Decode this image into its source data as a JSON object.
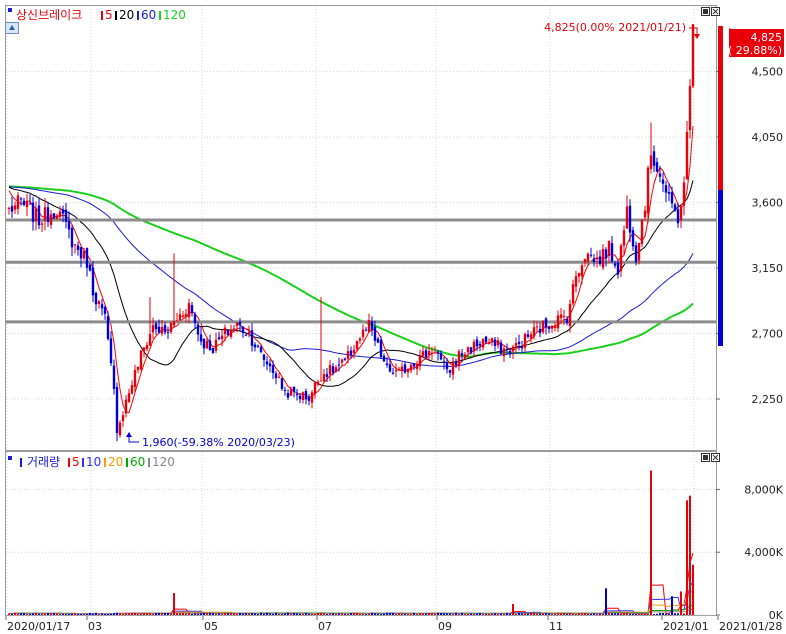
{
  "colors": {
    "up": "#e8000b",
    "down": "#0000dd",
    "ma5": "#ff0000",
    "ma20": "#000000",
    "ma60": "#1b1bd6",
    "ma120": "#19d119",
    "grid": "#d8d8d8",
    "hline": "#8c8c8c",
    "vol10": "#3030ff",
    "vol20": "#ff9900",
    "vol60": "#00aa00",
    "vol120": "#888888"
  },
  "price_legend": {
    "title": "상신브레이크",
    "items": [
      {
        "label": "5",
        "color": "#ff0000"
      },
      {
        "label": "20",
        "color": "#000000"
      },
      {
        "label": "60",
        "color": "#1b1bd6"
      },
      {
        "label": "120",
        "color": "#19d119"
      }
    ]
  },
  "volume_legend": {
    "title": "거래량",
    "items": [
      {
        "label": "5",
        "color": "#ff0000"
      },
      {
        "label": "10",
        "color": "#3030ff"
      },
      {
        "label": "20",
        "color": "#ff9900"
      },
      {
        "label": "60",
        "color": "#00aa00"
      },
      {
        "label": "120",
        "color": "#888888"
      }
    ]
  },
  "annotations": {
    "high": "4,825(0.00% 2021/01/21)",
    "low": "1,960(-59.38% 2020/03/23)",
    "current_price": "4,825",
    "current_change": "( 29.88%)"
  },
  "chart_data": [
    {
      "type": "candlestick",
      "title": "상신브레이크",
      "x_tick_labels": [
        "2020/01/17",
        "03",
        "05",
        "07",
        "09",
        "11",
        "2021/01",
        "2021/01/28"
      ],
      "y_ticks": [
        "4,500",
        "4,050",
        "3,600",
        "3,150",
        "2,700",
        "2,250"
      ],
      "ylim": [
        1900,
        4950
      ],
      "horizontal_lines": [
        3480,
        3190,
        2780
      ],
      "series_names": [
        "5",
        "20",
        "60",
        "120"
      ],
      "high": 4825,
      "low": 1960,
      "last": 4825,
      "anchors": [
        [
          0,
          3550
        ],
        [
          4,
          3600
        ],
        [
          10,
          3480
        ],
        [
          16,
          3560
        ],
        [
          22,
          3300
        ],
        [
          26,
          3200
        ],
        [
          28,
          3000
        ],
        [
          32,
          2800
        ],
        [
          35,
          2300
        ],
        [
          36,
          2050
        ],
        [
          37,
          2100
        ],
        [
          40,
          2300
        ],
        [
          44,
          2550
        ],
        [
          48,
          2750
        ],
        [
          52,
          2700
        ],
        [
          56,
          2800
        ],
        [
          60,
          2900
        ],
        [
          64,
          2650
        ],
        [
          68,
          2600
        ],
        [
          72,
          2700
        ],
        [
          76,
          2760
        ],
        [
          80,
          2700
        ],
        [
          84,
          2550
        ],
        [
          88,
          2450
        ],
        [
          92,
          2300
        ],
        [
          96,
          2280
        ],
        [
          100,
          2260
        ],
        [
          104,
          2420
        ],
        [
          108,
          2450
        ],
        [
          112,
          2500
        ],
        [
          116,
          2650
        ],
        [
          120,
          2750
        ],
        [
          122,
          2650
        ],
        [
          126,
          2450
        ],
        [
          130,
          2420
        ],
        [
          134,
          2500
        ],
        [
          138,
          2550
        ],
        [
          142,
          2600
        ],
        [
          146,
          2420
        ],
        [
          150,
          2550
        ],
        [
          154,
          2600
        ],
        [
          158,
          2650
        ],
        [
          162,
          2620
        ],
        [
          166,
          2580
        ],
        [
          170,
          2620
        ],
        [
          174,
          2700
        ],
        [
          178,
          2750
        ],
        [
          182,
          2790
        ],
        [
          186,
          2820
        ],
        [
          189,
          3100
        ],
        [
          192,
          3250
        ],
        [
          196,
          3200
        ],
        [
          200,
          3280
        ],
        [
          203,
          3150
        ],
        [
          206,
          3550
        ],
        [
          209,
          3250
        ],
        [
          212,
          3600
        ],
        [
          214,
          3950
        ],
        [
          217,
          3800
        ],
        [
          220,
          3600
        ],
        [
          223,
          3500
        ],
        [
          225,
          3700
        ],
        [
          227,
          4400
        ],
        [
          228,
          4825
        ]
      ]
    },
    {
      "type": "bar",
      "title": "거래량",
      "y_ticks": [
        "8,000K",
        "4,000K",
        "0K"
      ],
      "ylim": [
        0,
        10000
      ],
      "unit": "K",
      "peaks": [
        [
          55,
          1400
        ],
        [
          168,
          700
        ],
        [
          199,
          1700
        ],
        [
          214,
          9200
        ],
        [
          221,
          1200
        ],
        [
          224,
          1500
        ],
        [
          226,
          7300
        ],
        [
          227,
          7600
        ],
        [
          228,
          3200
        ]
      ],
      "base_volume": 60
    }
  ]
}
